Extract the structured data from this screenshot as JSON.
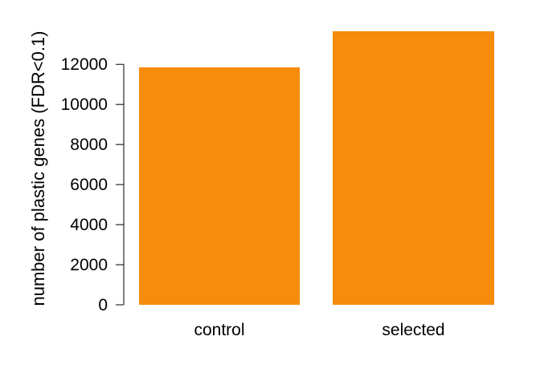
{
  "chart_data": {
    "type": "bar",
    "categories": [
      "control",
      "selected"
    ],
    "values": [
      11850,
      13650
    ],
    "ylabel": "number of plastic genes (FDR<0.1)",
    "xlabel": "",
    "ylim": [
      0,
      13650
    ],
    "yticks": [
      0,
      2000,
      4000,
      6000,
      8000,
      10000,
      12000
    ],
    "ytick_labels": [
      "0",
      "2000",
      "4000",
      "6000",
      "8000",
      "10000",
      "12000"
    ],
    "grid": false,
    "bar_color": "#f78b0c"
  }
}
